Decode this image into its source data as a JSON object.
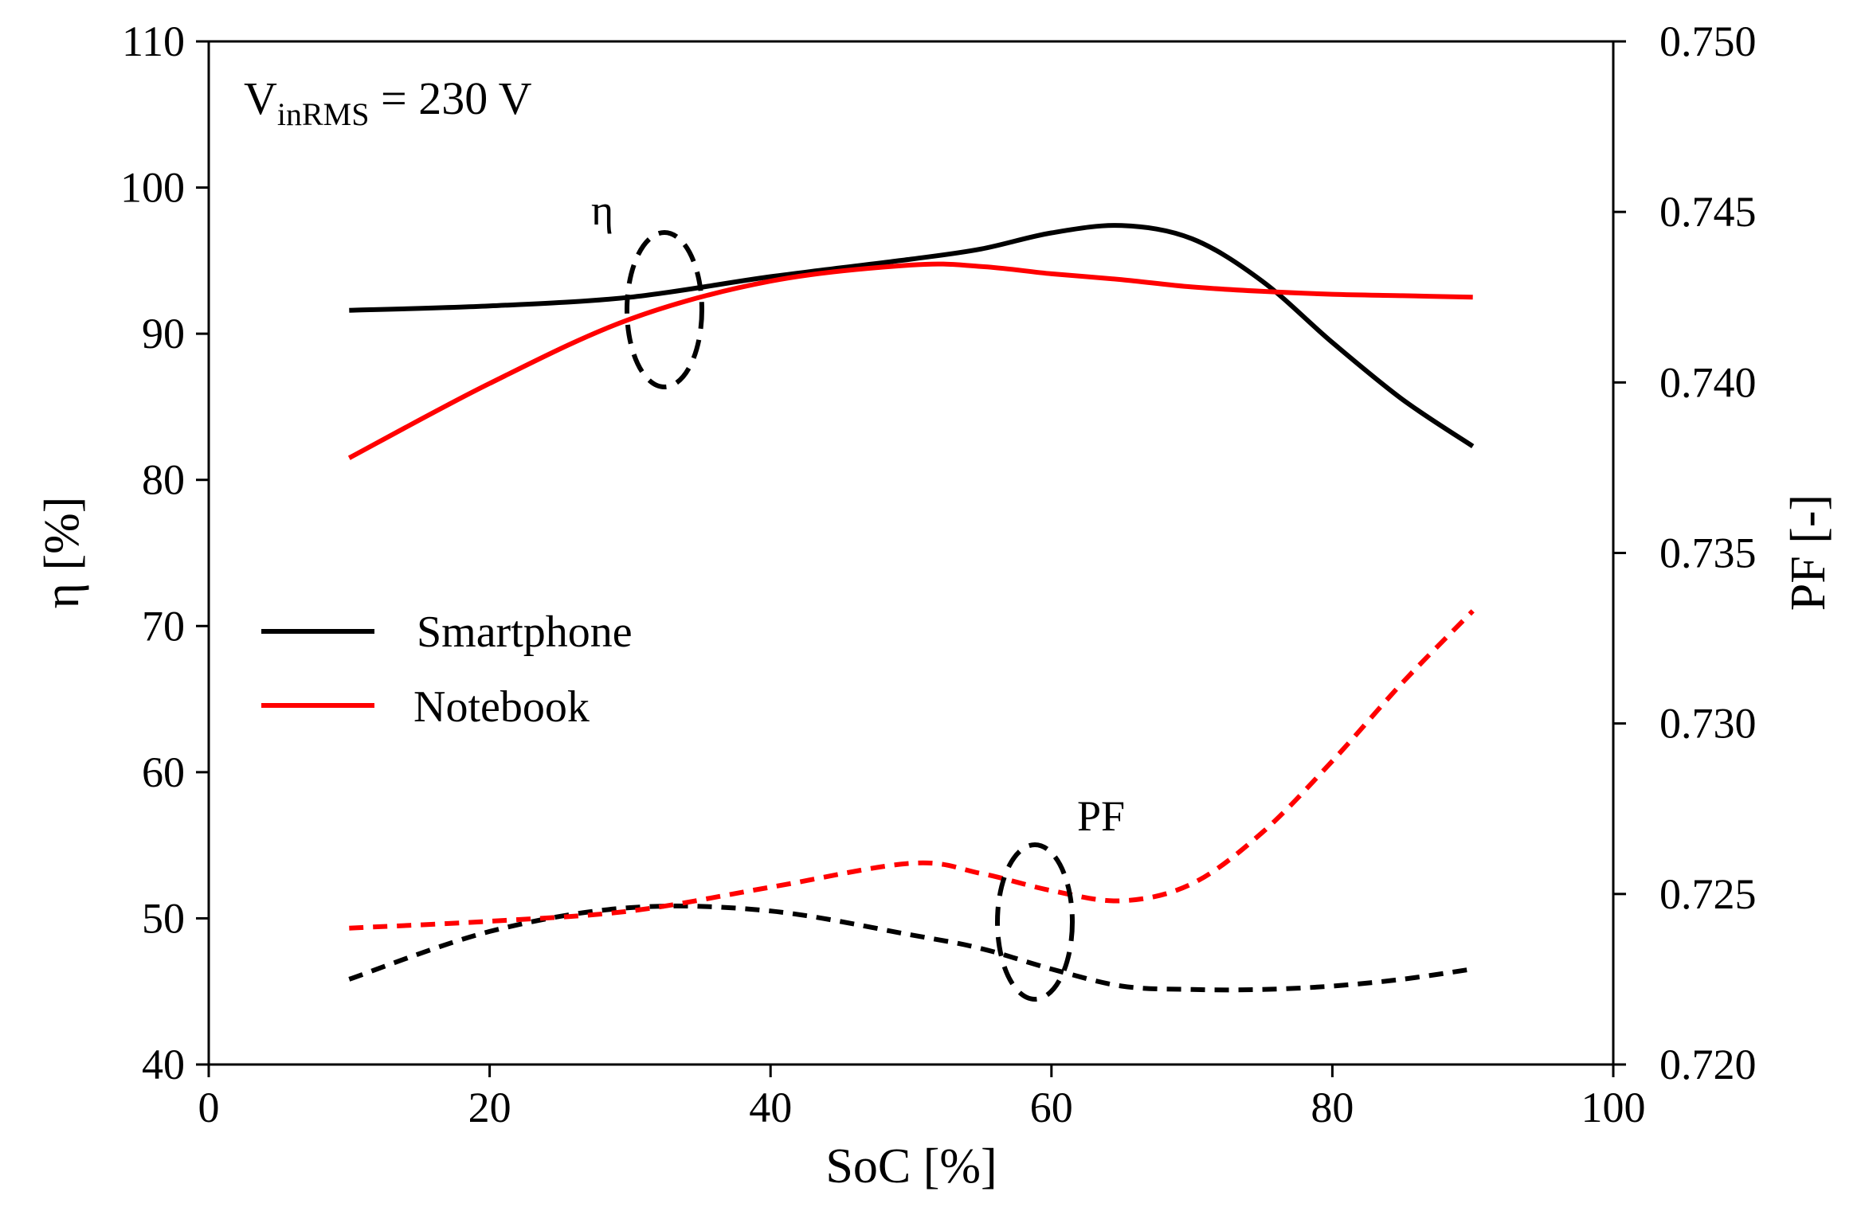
{
  "chart_data": {
    "type": "line",
    "title": "",
    "xlabel": "SoC [%]",
    "ylabel_left": "η [%]",
    "ylabel_right": "PF [-]",
    "xlim": [
      0,
      100
    ],
    "ylim_left": [
      40,
      110
    ],
    "ylim_right": [
      0.72,
      0.75
    ],
    "x_ticks": [
      "0",
      "20",
      "40",
      "60",
      "80",
      "100"
    ],
    "y_left_ticks": [
      "40",
      "50",
      "60",
      "70",
      "80",
      "90",
      "100",
      "110"
    ],
    "y_right_ticks": [
      "0.720",
      "0.725",
      "0.730",
      "0.735",
      "0.740",
      "0.745",
      "0.750"
    ],
    "annotation_voltage": {
      "main": "V",
      "sub": "inRMS",
      "rest": " = 230 V"
    },
    "annotation_eta": "η",
    "annotation_pf": "PF",
    "legend": [
      {
        "name": "Smartphone",
        "color": "#000000"
      },
      {
        "name": "Notebook",
        "color": "#ff0000"
      }
    ],
    "series": [
      {
        "name": "Smartphone η",
        "axis": "left",
        "style": "solid",
        "color": "#000000",
        "x": [
          10,
          20,
          30,
          40,
          50,
          55,
          60,
          65,
          70,
          75,
          80,
          85,
          90
        ],
        "values": [
          91.6,
          91.9,
          92.5,
          93.9,
          95.1,
          95.8,
          96.9,
          97.4,
          96.5,
          93.6,
          89.4,
          85.5,
          82.3
        ]
      },
      {
        "name": "Notebook η",
        "axis": "left",
        "style": "solid",
        "color": "#ff0000",
        "x": [
          10,
          20,
          30,
          40,
          50,
          55,
          60,
          65,
          70,
          75,
          80,
          85,
          90
        ],
        "values": [
          81.5,
          86.6,
          91.0,
          93.6,
          94.7,
          94.6,
          94.1,
          93.7,
          93.2,
          92.9,
          92.7,
          92.6,
          92.5
        ]
      },
      {
        "name": "Smartphone PF",
        "axis": "right",
        "style": "dashed",
        "color": "#000000",
        "x": [
          10,
          20,
          30,
          40,
          50,
          55,
          60,
          65,
          70,
          75,
          80,
          85,
          90
        ],
        "values": [
          0.7225,
          0.7239,
          0.7246,
          0.7245,
          0.7238,
          0.7234,
          0.7228,
          0.7223,
          0.7222,
          0.7222,
          0.7223,
          0.7225,
          0.7228
        ]
      },
      {
        "name": "Notebook PF",
        "axis": "right",
        "style": "dashed",
        "color": "#ff0000",
        "x": [
          10,
          20,
          30,
          40,
          50,
          55,
          60,
          65,
          70,
          75,
          80,
          85,
          90
        ],
        "values": [
          0.724,
          0.7242,
          0.7245,
          0.7252,
          0.7259,
          0.7256,
          0.7251,
          0.7248,
          0.7253,
          0.7268,
          0.7289,
          0.7312,
          0.7333
        ]
      }
    ]
  }
}
